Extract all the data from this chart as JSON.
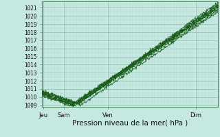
{
  "title": "Pression niveau de la mer( hPa )",
  "ylim": [
    1008.8,
    1021.8
  ],
  "yticks": [
    1009,
    1010,
    1011,
    1012,
    1013,
    1014,
    1015,
    1016,
    1017,
    1018,
    1019,
    1020,
    1021
  ],
  "background_color": "#c5e8e0",
  "grid_color_minor": "#b0d8cc",
  "grid_color_major": "#8abcaa",
  "line_color": "#1a5c1a",
  "marker_color": "#1a5c1a",
  "xlabel_fontsize": 7.5,
  "ytick_fontsize": 5.5,
  "xtick_fontsize": 6.0
}
